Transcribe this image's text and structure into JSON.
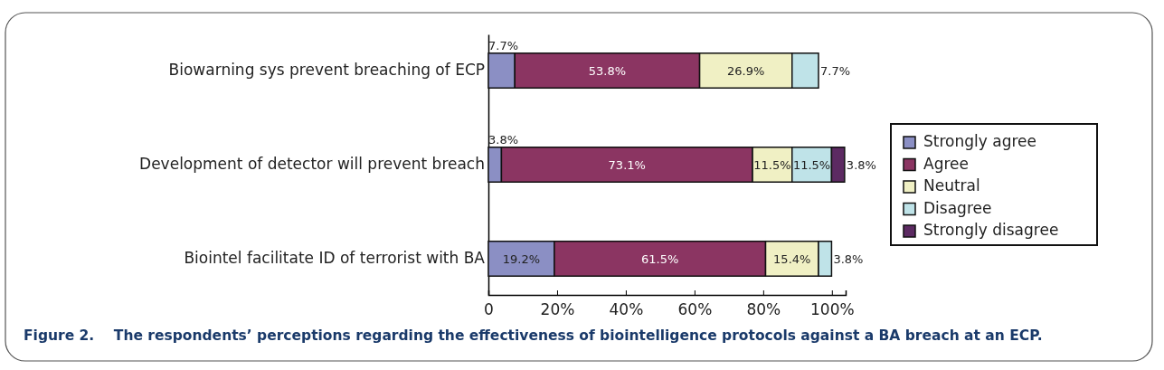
{
  "chart_data": {
    "type": "bar",
    "orientation": "horizontal",
    "stacked": true,
    "legend": "right",
    "grid": false,
    "categories": [
      "Biowarning sys prevent breaching of ECP",
      "Development of detector will prevent breach",
      "Biointel facilitate ID of terrorist with BA"
    ],
    "series": [
      {
        "name": "Strongly agree",
        "color": "#8b8fc4",
        "values": [
          7.7,
          3.8,
          19.2
        ],
        "value_labels": [
          "7.7%",
          "3.8%",
          "19.2%"
        ]
      },
      {
        "name": "Agree",
        "color": "#8b3562",
        "values": [
          53.8,
          73.1,
          61.5
        ],
        "value_labels": [
          "53.8%",
          "73.1%",
          "61.5%"
        ]
      },
      {
        "name": "Neutral",
        "color": "#f0f0c4",
        "values": [
          26.9,
          11.5,
          15.4
        ],
        "value_labels": [
          "26.9%",
          "11.5%",
          "15.4%"
        ]
      },
      {
        "name": "Disagree",
        "color": "#bfe3e8",
        "values": [
          7.7,
          11.5,
          3.8
        ],
        "value_labels": [
          "7.7%",
          "11.5%",
          "3.8%"
        ]
      },
      {
        "name": "Strongly disagree",
        "color": "#5c2a62",
        "values": [
          null,
          3.8,
          null
        ],
        "value_labels": [
          null,
          "3.8%",
          null
        ]
      }
    ],
    "xlim": [
      0,
      104
    ],
    "xticks": [
      {
        "value": 0,
        "label": "0"
      },
      {
        "value": 20,
        "label": "20%"
      },
      {
        "value": 40,
        "label": "40%"
      },
      {
        "value": 60,
        "label": "60%"
      },
      {
        "value": 80,
        "label": "80%"
      },
      {
        "value": 100,
        "label": "100%"
      }
    ],
    "annotations": [
      "Figure 2.    The respondents’ perceptions regarding the effectiveness of biointelligence protocols against a BA breach at an ECP."
    ]
  }
}
